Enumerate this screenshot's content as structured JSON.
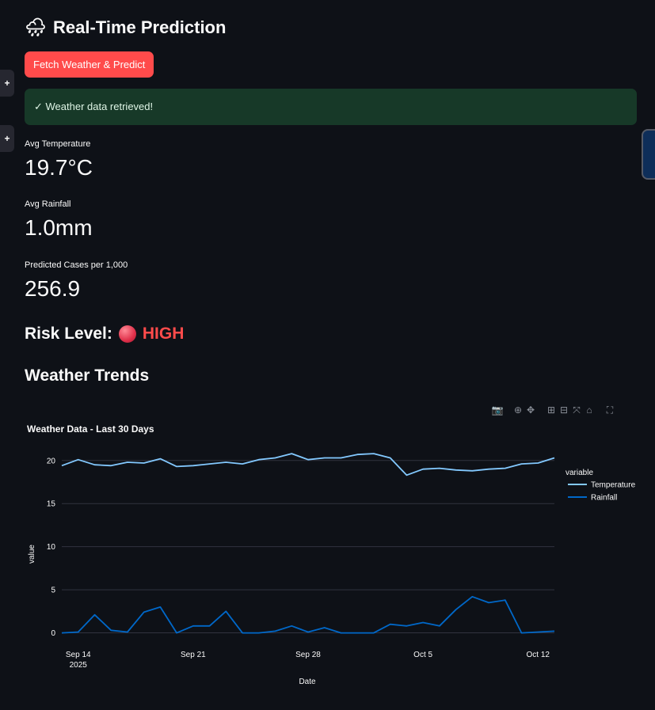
{
  "header": {
    "title": "Real-Time Prediction",
    "title_icon": "rain-cloud-icon"
  },
  "actions": {
    "fetch_label": "Fetch Weather & Predict"
  },
  "alert": {
    "message": "✓ Weather data retrieved!"
  },
  "metrics": [
    {
      "label": "Avg Temperature",
      "value": "19.7°C"
    },
    {
      "label": "Avg Rainfall",
      "value": "1.0mm"
    },
    {
      "label": "Predicted Cases per 1,000",
      "value": "256.9"
    }
  ],
  "risk": {
    "label": "Risk Level:",
    "level": "HIGH",
    "color": "#ff4b4b"
  },
  "trends": {
    "title": "Weather Trends"
  },
  "chart_data": {
    "type": "line",
    "title": "Weather Data - Last 30 Days",
    "xlabel": "Date",
    "ylabel": "value",
    "legend_title": "variable",
    "legend_position": "right",
    "x_tick_labels": [
      {
        "date": "2025-09-14",
        "label": "Sep 14",
        "sublabel": "2025"
      },
      {
        "date": "2025-09-21",
        "label": "Sep 21",
        "sublabel": ""
      },
      {
        "date": "2025-09-28",
        "label": "Sep 28",
        "sublabel": ""
      },
      {
        "date": "2025-10-05",
        "label": "Oct 5",
        "sublabel": ""
      },
      {
        "date": "2025-10-12",
        "label": "Oct 12",
        "sublabel": ""
      }
    ],
    "y_ticks": [
      0,
      5,
      10,
      15,
      20
    ],
    "ylim": [
      -0.5,
      22
    ],
    "grid": true,
    "x": [
      "2025-09-13",
      "2025-09-14",
      "2025-09-15",
      "2025-09-16",
      "2025-09-17",
      "2025-09-18",
      "2025-09-19",
      "2025-09-20",
      "2025-09-21",
      "2025-09-22",
      "2025-09-23",
      "2025-09-24",
      "2025-09-25",
      "2025-09-26",
      "2025-09-27",
      "2025-09-28",
      "2025-09-29",
      "2025-09-30",
      "2025-10-01",
      "2025-10-02",
      "2025-10-03",
      "2025-10-04",
      "2025-10-05",
      "2025-10-06",
      "2025-10-07",
      "2025-10-08",
      "2025-10-09",
      "2025-10-10",
      "2025-10-11",
      "2025-10-12",
      "2025-10-13"
    ],
    "series": [
      {
        "name": "Temperature",
        "color": "#83c9ff",
        "values": [
          19.4,
          20.1,
          19.5,
          19.4,
          19.8,
          19.7,
          20.2,
          19.3,
          19.4,
          19.6,
          19.8,
          19.6,
          20.1,
          20.3,
          20.8,
          20.1,
          20.3,
          20.3,
          20.7,
          20.8,
          20.3,
          18.3,
          19.0,
          19.1,
          18.9,
          18.8,
          19.0,
          19.1,
          19.6,
          19.7,
          20.3
        ]
      },
      {
        "name": "Rainfall",
        "color": "#0068c9",
        "values": [
          0.0,
          0.1,
          2.1,
          0.3,
          0.1,
          2.4,
          3.0,
          0.0,
          0.8,
          0.8,
          2.5,
          0.0,
          0.0,
          0.2,
          0.8,
          0.1,
          0.6,
          0.0,
          0.0,
          0.0,
          1.0,
          0.8,
          1.2,
          0.8,
          2.7,
          4.2,
          3.5,
          3.8,
          0.0,
          0.1,
          0.2
        ]
      }
    ]
  }
}
